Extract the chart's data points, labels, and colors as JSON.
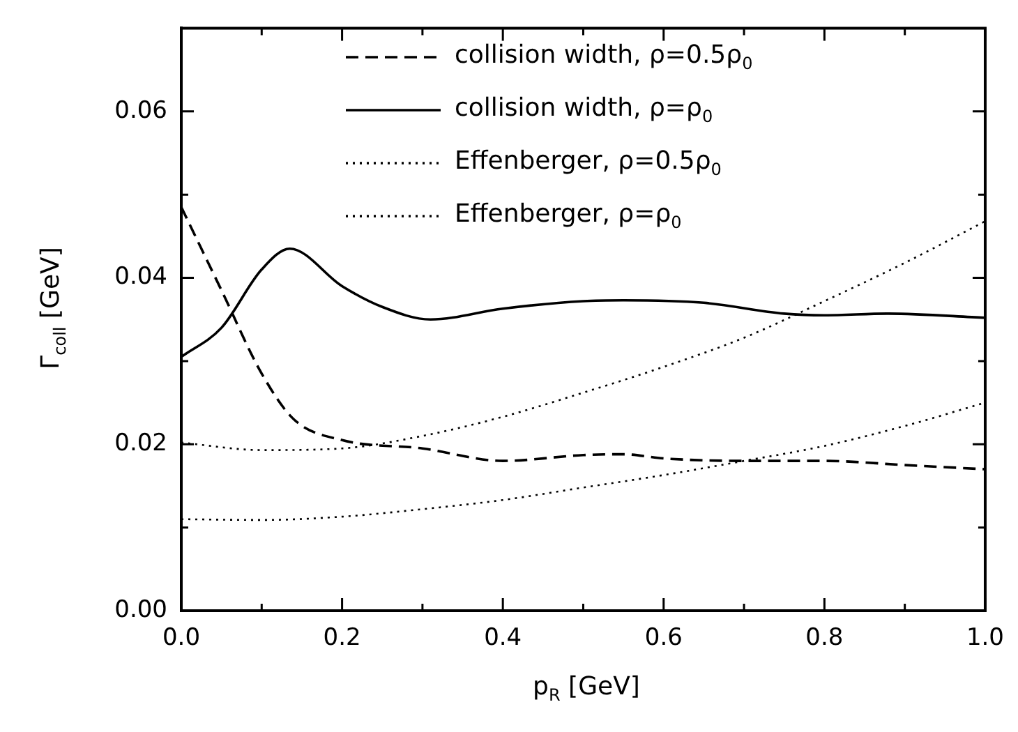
{
  "chart_data": {
    "type": "line",
    "xlabel": "p$_{R}$ [GeV]",
    "ylabel": "Γ$_{coll}$ [GeV]",
    "xlim": [
      0,
      1
    ],
    "ylim": [
      0,
      0.07
    ],
    "xticks": [
      {
        "value": 0,
        "label": "0.0"
      },
      {
        "value": 0.1,
        "label": null
      },
      {
        "value": 0.2,
        "label": "0.2"
      },
      {
        "value": 0.3,
        "label": null
      },
      {
        "value": 0.4,
        "label": "0.4"
      },
      {
        "value": 0.5,
        "label": null
      },
      {
        "value": 0.6,
        "label": "0.6"
      },
      {
        "value": 0.7,
        "label": null
      },
      {
        "value": 0.8,
        "label": "0.8"
      },
      {
        "value": 0.9,
        "label": null
      },
      {
        "value": 1,
        "label": "1.0"
      }
    ],
    "yticks": [
      {
        "value": 0,
        "label": "0.00"
      },
      {
        "value": 0.01,
        "label": null
      },
      0.02,
      {
        "value": 0.03,
        "label": null
      },
      0.04,
      {
        "value": 0.05,
        "label": null
      },
      0.06,
      {
        "value": 0.07,
        "label": null
      }
    ],
    "grid": false,
    "legend": "top right",
    "marker": "none",
    "series": [
      {
        "name": "collision width, ρ=0.5ρ$_{0}$",
        "color": "#000000",
        "line_style": "dashed",
        "x": [
          0,
          0.05,
          0.1,
          0.14,
          0.2,
          0.3,
          0.4,
          0.5,
          0.55,
          0.6,
          0.7,
          0.8,
          0.9,
          1
        ],
        "values": [
          0.0485,
          0.0385,
          0.0285,
          0.023,
          0.0205,
          0.0195,
          0.018,
          0.0187,
          0.0188,
          0.0183,
          0.018,
          0.018,
          0.0175,
          0.017
        ]
      },
      {
        "name": "collision width, ρ=ρ$_{0}$",
        "color": "#000000",
        "line_style": "solid",
        "x": [
          0,
          0.05,
          0.1,
          0.135,
          0.2,
          0.25,
          0.31,
          0.4,
          0.5,
          0.55,
          0.65,
          0.75,
          0.8,
          0.88,
          1
        ],
        "values": [
          0.0305,
          0.034,
          0.041,
          0.0435,
          0.039,
          0.0365,
          0.035,
          0.0363,
          0.0372,
          0.0373,
          0.037,
          0.0357,
          0.0355,
          0.0357,
          0.0352
        ]
      },
      {
        "name": "Effenberger, ρ=0.5ρ$_{0}$",
        "color": "#000000",
        "line_style": "dotted",
        "x": [
          0,
          0.1,
          0.2,
          0.3,
          0.4,
          0.5,
          0.6,
          0.7,
          0.8,
          0.9,
          1
        ],
        "values": [
          0.011,
          0.0109,
          0.0113,
          0.0122,
          0.0133,
          0.0148,
          0.0163,
          0.018,
          0.0198,
          0.0222,
          0.025
        ]
      },
      {
        "name": "Effenberger, ρ=ρ$_{0}$",
        "color": "#000000",
        "line_style": "dotted",
        "x": [
          0,
          0.1,
          0.2,
          0.3,
          0.4,
          0.5,
          0.6,
          0.7,
          0.8,
          0.9,
          1
        ],
        "values": [
          0.0202,
          0.0193,
          0.0195,
          0.021,
          0.0233,
          0.0262,
          0.0293,
          0.0328,
          0.0372,
          0.0418,
          0.0468
        ]
      }
    ]
  }
}
